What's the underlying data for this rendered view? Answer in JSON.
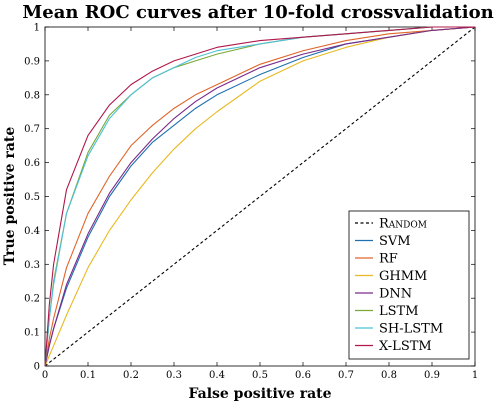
{
  "chart_data": {
    "type": "line",
    "title": "Mean ROC curves after 10-fold crossvalidation",
    "xlabel": "False positive rate",
    "ylabel": "True positive rate",
    "xlim": [
      0,
      1
    ],
    "ylim": [
      0,
      1
    ],
    "xticks": [
      "0",
      "0.1",
      "0.2",
      "0.3",
      "0.4",
      "0.5",
      "0.6",
      "0.7",
      "0.8",
      "0.9",
      "1"
    ],
    "yticks": [
      "0",
      "0.1",
      "0.2",
      "0.3",
      "0.4",
      "0.5",
      "0.6",
      "0.7",
      "0.8",
      "0.9",
      "1"
    ],
    "grid": false,
    "legend_position": "bottom-right",
    "x": [
      0,
      0.01,
      0.02,
      0.05,
      0.1,
      0.15,
      0.2,
      0.25,
      0.3,
      0.35,
      0.4,
      0.5,
      0.6,
      0.7,
      0.8,
      0.9,
      1.0
    ],
    "series": [
      {
        "name": "Random",
        "color": "#000000",
        "dashed": true,
        "values": [
          0,
          0.01,
          0.02,
          0.05,
          0.1,
          0.15,
          0.2,
          0.25,
          0.3,
          0.35,
          0.4,
          0.5,
          0.6,
          0.7,
          0.8,
          0.9,
          1.0
        ]
      },
      {
        "name": "SVM",
        "color": "#1f6faf",
        "values": [
          0,
          0.06,
          0.11,
          0.23,
          0.38,
          0.5,
          0.59,
          0.66,
          0.71,
          0.76,
          0.8,
          0.86,
          0.91,
          0.95,
          0.97,
          0.99,
          1.0
        ]
      },
      {
        "name": "RF",
        "color": "#e0662a",
        "values": [
          0,
          0.08,
          0.14,
          0.29,
          0.45,
          0.56,
          0.65,
          0.71,
          0.76,
          0.8,
          0.83,
          0.89,
          0.93,
          0.96,
          0.98,
          0.99,
          1.0
        ]
      },
      {
        "name": "GHMM",
        "color": "#e8b922",
        "values": [
          0,
          0.03,
          0.06,
          0.15,
          0.29,
          0.4,
          0.49,
          0.57,
          0.64,
          0.7,
          0.75,
          0.84,
          0.9,
          0.94,
          0.97,
          0.99,
          1.0
        ]
      },
      {
        "name": "DNN",
        "color": "#7a2a8a",
        "values": [
          0,
          0.06,
          0.11,
          0.24,
          0.39,
          0.51,
          0.6,
          0.67,
          0.73,
          0.78,
          0.82,
          0.88,
          0.92,
          0.95,
          0.97,
          0.99,
          1.0
        ]
      },
      {
        "name": "LSTM",
        "color": "#7aa83a",
        "values": [
          0,
          0.14,
          0.25,
          0.45,
          0.63,
          0.74,
          0.8,
          0.85,
          0.88,
          0.9,
          0.92,
          0.95,
          0.97,
          0.98,
          0.99,
          1.0,
          1.0
        ]
      },
      {
        "name": "SH-LSTM",
        "color": "#4fc0d8",
        "values": [
          0,
          0.14,
          0.24,
          0.45,
          0.62,
          0.73,
          0.8,
          0.85,
          0.88,
          0.91,
          0.93,
          0.95,
          0.97,
          0.98,
          0.99,
          1.0,
          1.0
        ]
      },
      {
        "name": "X-LSTM",
        "color": "#b0174a",
        "values": [
          0,
          0.18,
          0.3,
          0.52,
          0.68,
          0.77,
          0.83,
          0.87,
          0.9,
          0.92,
          0.94,
          0.96,
          0.97,
          0.98,
          0.99,
          1.0,
          1.0
        ]
      }
    ]
  }
}
